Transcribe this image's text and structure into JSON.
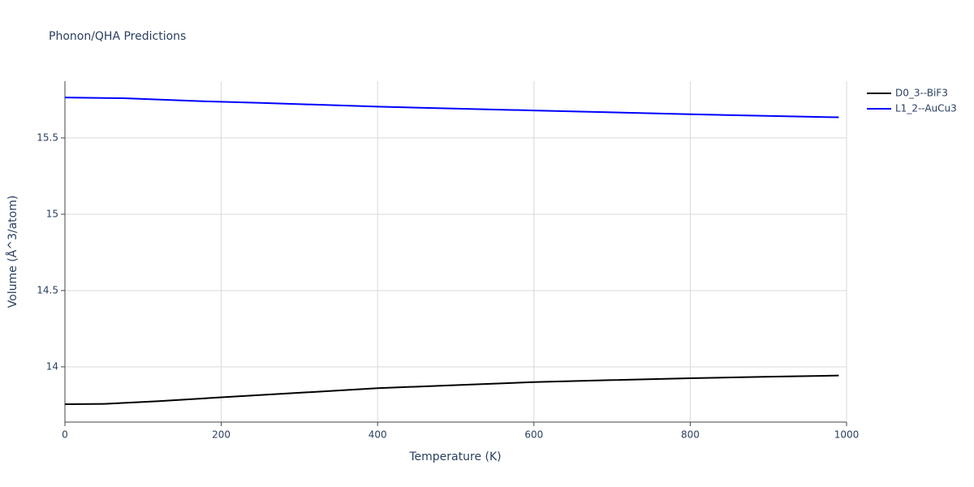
{
  "chart_data": {
    "type": "line",
    "title": "Phonon/QHA Predictions",
    "x_label": "Temperature (K)",
    "y_label": "Volume (Å^3/atom)",
    "xlim": [
      0,
      1000
    ],
    "xticks": [
      0,
      200,
      400,
      600,
      800,
      1000
    ],
    "ylim": [
      13.638,
      15.872
    ],
    "yticks": [
      14,
      14.5,
      15,
      15.5
    ],
    "grid": true,
    "legend": "top-right",
    "series": [
      {
        "name": "D0_3--BiF3",
        "color": "#000000",
        "x": [
          0,
          50,
          120,
          200,
          300,
          400,
          500,
          600,
          700,
          800,
          900,
          990
        ],
        "values": [
          13.755,
          13.757,
          13.775,
          13.8,
          13.83,
          13.86,
          13.88,
          13.9,
          13.913,
          13.925,
          13.935,
          13.943
        ]
      },
      {
        "name": "L1_2--AuCu3",
        "color": "#0000ff",
        "x": [
          0,
          75,
          180,
          250,
          400,
          600,
          800,
          990
        ],
        "values": [
          15.765,
          15.76,
          15.74,
          15.73,
          15.705,
          15.68,
          15.655,
          15.635
        ]
      }
    ]
  }
}
